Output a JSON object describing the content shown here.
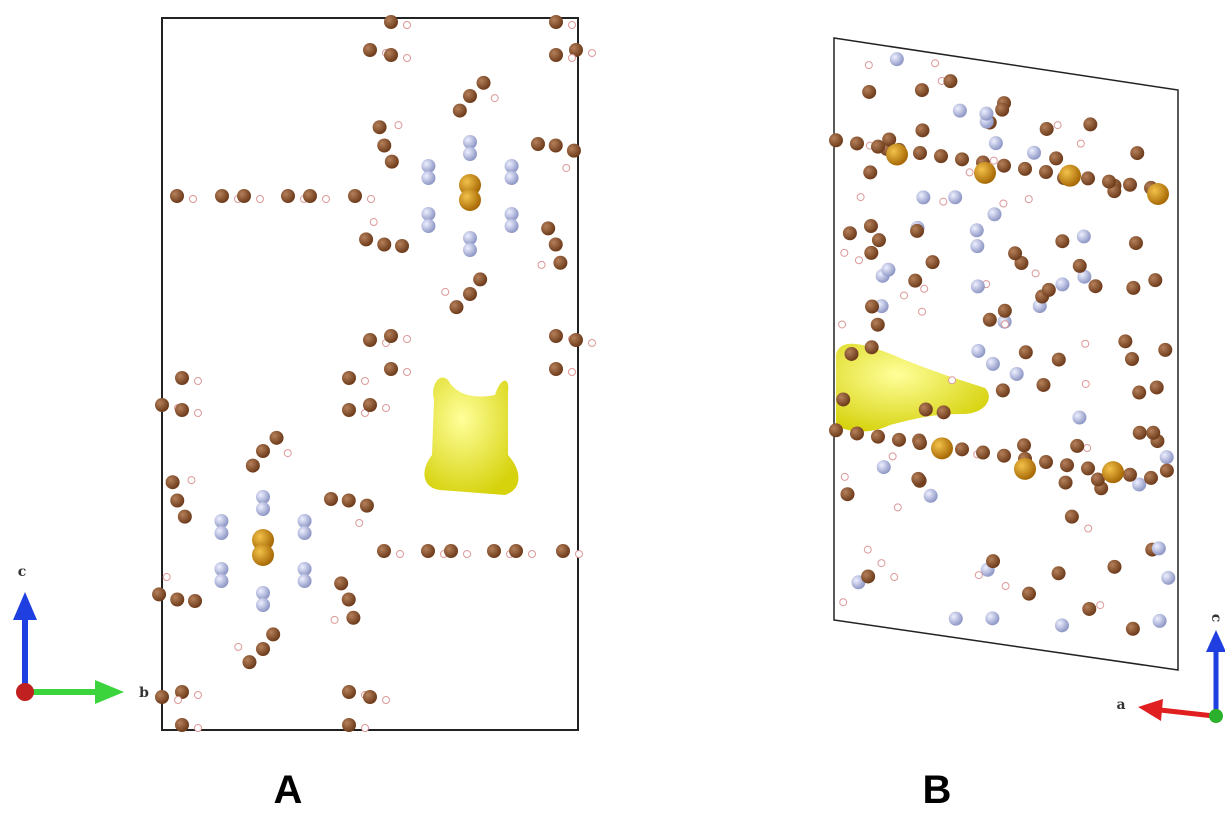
{
  "panels": [
    {
      "label": "A",
      "axes": {
        "vertical": "c",
        "horizontal": "b"
      }
    },
    {
      "label": "B",
      "axes": {
        "vertical": "c",
        "horizontal": "a"
      }
    }
  ]
}
